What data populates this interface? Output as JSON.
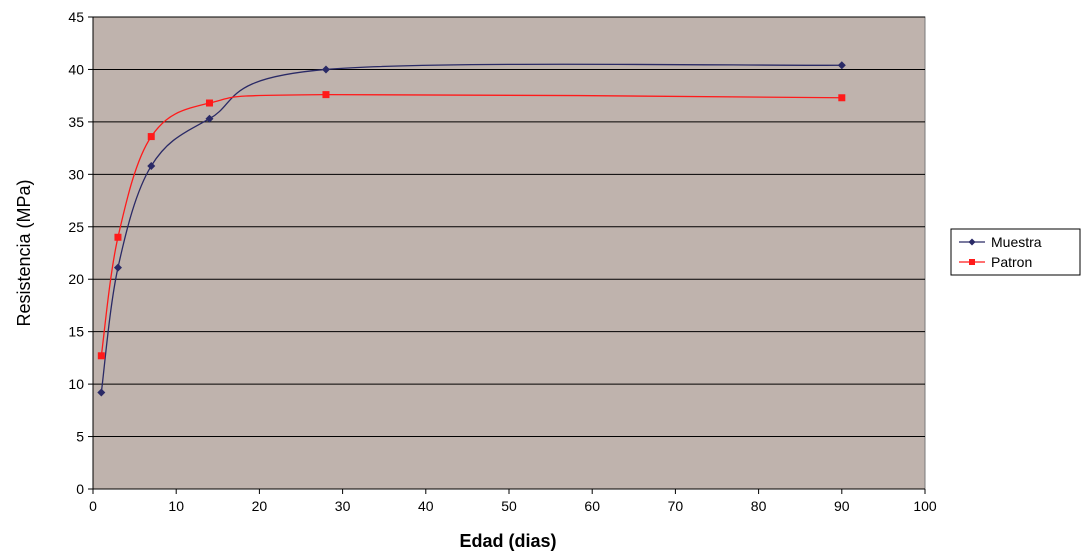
{
  "chart_data": {
    "type": "line",
    "title": "",
    "xlabel": "Edad (dias)",
    "ylabel": "Resistencia (MPa)",
    "xlim": [
      0,
      100
    ],
    "ylim": [
      0,
      45
    ],
    "xticks": [
      0,
      10,
      20,
      30,
      40,
      50,
      60,
      70,
      80,
      90,
      100
    ],
    "yticks": [
      0,
      5,
      10,
      15,
      20,
      25,
      30,
      35,
      40,
      45
    ],
    "grid": "horizontal",
    "plot_background": "#bfb3ad",
    "legend_position": "right",
    "series": [
      {
        "name": "Muestra",
        "color": "#2a2a66",
        "marker": "diamond",
        "smooth": true,
        "x": [
          1,
          3,
          7,
          14,
          28,
          90
        ],
        "y": [
          9.2,
          21.1,
          30.8,
          35.3,
          40.0,
          40.4
        ]
      },
      {
        "name": "Patron",
        "color": "#ff1a1a",
        "marker": "square",
        "smooth": true,
        "x": [
          1,
          3,
          7,
          14,
          28,
          90
        ],
        "y": [
          12.7,
          24.0,
          33.6,
          36.8,
          37.6,
          37.3
        ]
      }
    ]
  }
}
